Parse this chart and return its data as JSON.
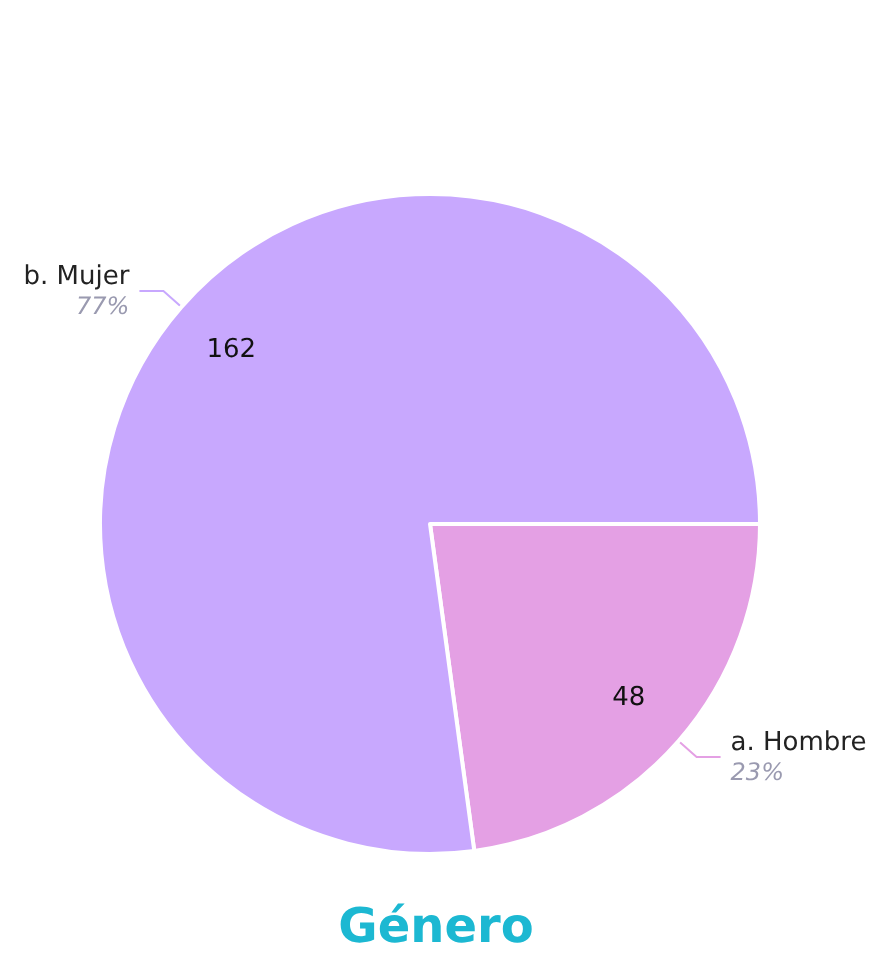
{
  "chart_data": {
    "type": "pie",
    "title": "Género",
    "categories": [
      "a. Hombre",
      "b. Mujer"
    ],
    "values": [
      48,
      162
    ],
    "colors": [
      "#e4a0e4",
      "#c8a8fe"
    ],
    "data_labels": true,
    "annotations": [
      {
        "text": "23%",
        "x": "a. Hombre"
      },
      {
        "text": "77%",
        "x": "b. Mujer"
      }
    ]
  }
}
